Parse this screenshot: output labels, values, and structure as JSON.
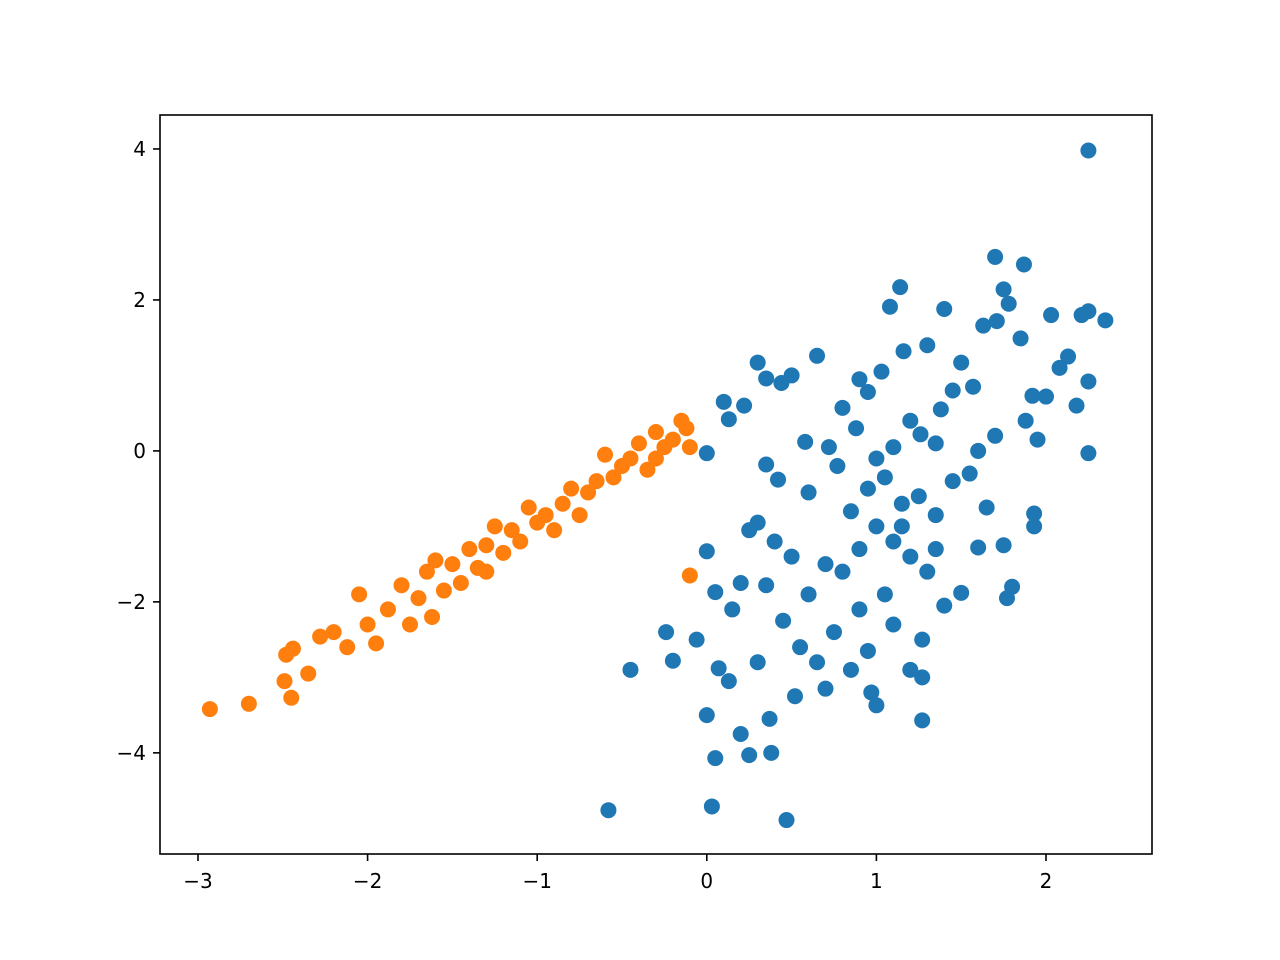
{
  "chart_data": {
    "type": "scatter",
    "xlim": [
      -3.224,
      2.625
    ],
    "ylim": [
      -5.34,
      4.45
    ],
    "xticks": [
      {
        "value": -3,
        "label": "−3"
      },
      {
        "value": -2,
        "label": "−2"
      },
      {
        "value": -1,
        "label": "−1"
      },
      0,
      1,
      2
    ],
    "yticks": [
      {
        "value": -4,
        "label": "−4"
      },
      {
        "value": -2,
        "label": "−2"
      },
      0,
      2,
      4
    ],
    "series": [
      {
        "color": "#1f77b4",
        "x": [
          2.25,
          1.7,
          1.87,
          1.14,
          1.08,
          1.4,
          2.35,
          2.25,
          2.21,
          2.03,
          1.75,
          1.78,
          1.63,
          1.71,
          1.85,
          2.13,
          2.08,
          1.92,
          2.0,
          2.25,
          2.18,
          1.16,
          1.3,
          1.5,
          1.57,
          1.45,
          1.38,
          1.2,
          1.26,
          1.1,
          0.9,
          0.8,
          0.95,
          1.03,
          0.88,
          0.72,
          0.58,
          0.3,
          0.65,
          0.5,
          0.44,
          0.35,
          0.1,
          0.22,
          0.13,
          0.0,
          0.35,
          0.42,
          0.6,
          0.77,
          0.95,
          1.05,
          1.15,
          1.25,
          1.35,
          1.45,
          1.55,
          1.65,
          1.75,
          1.6,
          1.93,
          1.93,
          1.8,
          1.77,
          1.5,
          1.4,
          1.3,
          1.2,
          1.1,
          1.0,
          0.9,
          0.8,
          0.7,
          0.6,
          0.5,
          0.4,
          0.3,
          0.25,
          0.2,
          0.15,
          0.05,
          0.0,
          0.35,
          0.45,
          0.55,
          0.65,
          0.75,
          0.85,
          0.95,
          1.1,
          1.27,
          1.2,
          1.27,
          0.97,
          1.27,
          1.0,
          0.37,
          0.2,
          0.25,
          0.38,
          0.0,
          0.07,
          0.13,
          0.3,
          0.52,
          0.7,
          -0.58,
          0.03,
          0.47,
          0.05,
          -0.45,
          -0.24,
          -0.2,
          -0.06,
          2.25,
          1.88,
          1.95,
          1.7,
          1.6,
          1.35,
          1.0,
          0.85,
          1.15,
          1.35,
          1.05,
          0.9
        ],
        "values": [
          3.98,
          2.57,
          2.47,
          2.17,
          1.91,
          1.88,
          1.73,
          1.85,
          1.8,
          1.8,
          2.14,
          1.95,
          1.66,
          1.72,
          1.49,
          1.25,
          1.1,
          0.73,
          0.72,
          0.92,
          0.6,
          1.32,
          1.4,
          1.17,
          0.85,
          0.8,
          0.55,
          0.4,
          0.22,
          0.05,
          0.95,
          0.57,
          0.78,
          1.05,
          0.3,
          0.05,
          0.12,
          1.17,
          1.26,
          1.0,
          0.9,
          0.96,
          0.65,
          0.6,
          0.42,
          -0.03,
          -0.18,
          -0.38,
          -0.55,
          -0.2,
          -0.5,
          -0.35,
          -0.7,
          -0.6,
          -0.85,
          -0.4,
          -0.3,
          -0.75,
          -1.25,
          -1.28,
          -0.83,
          -1.0,
          -1.8,
          -1.95,
          -1.88,
          -2.05,
          -1.6,
          -1.4,
          -1.2,
          -1.0,
          -1.3,
          -1.6,
          -1.5,
          -1.9,
          -1.4,
          -1.2,
          -0.95,
          -1.05,
          -1.75,
          -2.1,
          -1.87,
          -1.33,
          -1.78,
          -2.25,
          -2.6,
          -2.8,
          -2.4,
          -2.9,
          -2.65,
          -2.3,
          -2.5,
          -2.9,
          -3.0,
          -3.2,
          -3.57,
          -3.37,
          -3.55,
          -3.75,
          -4.03,
          -4.0,
          -3.5,
          -2.88,
          -3.05,
          -2.8,
          -3.25,
          -3.15,
          -4.76,
          -4.71,
          -4.89,
          -4.07,
          -2.9,
          -2.4,
          -2.78,
          -2.5,
          -0.03,
          0.4,
          0.15,
          0.2,
          0.0,
          0.1,
          -0.1,
          -0.8,
          -1.0,
          -1.3,
          -1.9,
          -2.1
        ]
      },
      {
        "color": "#ff7f0e",
        "x": [
          -2.93,
          -2.7,
          -2.49,
          -2.45,
          -2.44,
          -2.48,
          -2.35,
          -2.28,
          -2.2,
          -2.12,
          -2.05,
          -2.0,
          -1.95,
          -1.88,
          -1.8,
          -1.75,
          -1.7,
          -1.65,
          -1.6,
          -1.55,
          -1.5,
          -1.45,
          -1.4,
          -1.35,
          -1.3,
          -1.25,
          -1.2,
          -1.15,
          -1.1,
          -1.05,
          -1.0,
          -0.95,
          -0.9,
          -0.85,
          -0.8,
          -0.75,
          -0.7,
          -0.65,
          -0.6,
          -0.55,
          -0.5,
          -0.45,
          -0.4,
          -0.35,
          -0.3,
          -0.25,
          -0.2,
          -0.15,
          -0.12,
          -0.1,
          -0.3,
          -0.1,
          -1.62,
          -1.3
        ],
        "values": [
          -3.42,
          -3.35,
          -3.05,
          -3.27,
          -2.62,
          -2.7,
          -2.95,
          -2.46,
          -2.4,
          -2.6,
          -1.9,
          -2.3,
          -2.55,
          -2.1,
          -1.78,
          -2.3,
          -1.95,
          -1.6,
          -1.45,
          -1.85,
          -1.5,
          -1.75,
          -1.3,
          -1.55,
          -1.25,
          -1.0,
          -1.35,
          -1.05,
          -1.2,
          -0.75,
          -0.95,
          -0.85,
          -1.05,
          -0.7,
          -0.5,
          -0.85,
          -0.55,
          -0.4,
          -0.05,
          -0.35,
          -0.2,
          -0.1,
          0.1,
          -0.25,
          0.25,
          0.05,
          0.15,
          0.4,
          0.3,
          0.05,
          -0.1,
          -1.65,
          -2.2,
          -1.6
        ]
      }
    ]
  }
}
